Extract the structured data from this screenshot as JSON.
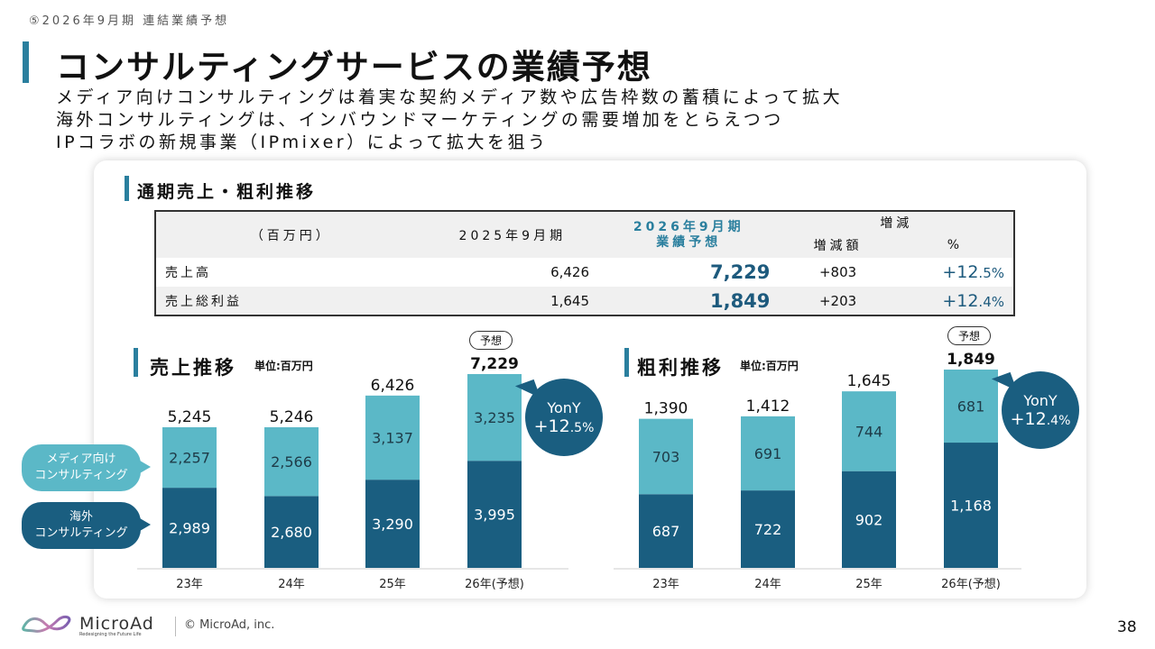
{
  "header": {
    "section_label": "⑤2026年9月期 連結業績予想",
    "title": "コンサルティングサービスの業績予想",
    "subtitle_lines": [
      "メディア向けコンサルティングは着実な契約メディア数や広告枠数の蓄積によって拡大",
      "海外コンサルティングは、インバウンドマーケティングの需要増加をとらえつつ",
      "IPコラボの新規事業（IPmixer）によって拡大を狙う"
    ]
  },
  "summary": {
    "heading": "通期売上・粗利推移",
    "headers": {
      "unit": "（百万円）",
      "prev": "2025年9月期",
      "forecast_line1": "2026年9月期",
      "forecast_line2": "業績予想",
      "diff": "増減",
      "diff_amount": "増減額",
      "diff_pct": "%"
    },
    "rows": [
      {
        "label": "売上高",
        "prev": "6,426",
        "forecast": "7,229",
        "diff": "+803",
        "pct_main": "+12",
        "pct_dec": ".5%"
      },
      {
        "label": "売上総利益",
        "prev": "1,645",
        "forecast": "1,849",
        "diff": "+203",
        "pct_main": "+12",
        "pct_dec": ".4%"
      }
    ]
  },
  "callouts": {
    "media": [
      "メディア向け",
      "コンサルティング"
    ],
    "overseas": [
      "海外",
      "コンサルティング"
    ]
  },
  "forecast_pill": "予想",
  "colors": {
    "accent": "#2a7f9e",
    "media": "#5bb8c7",
    "overseas": "#1a5e80",
    "forecast_text": "#1d5a7d"
  },
  "chart_data": [
    {
      "type": "bar",
      "stacked": true,
      "title": "売上推移",
      "unit": "単位:百万円",
      "categories": [
        "23年",
        "24年",
        "25年",
        "26年(予想)"
      ],
      "series": [
        {
          "name": "海外コンサルティング",
          "values": [
            2989,
            2680,
            3290,
            3995
          ],
          "labels": [
            "2,989",
            "2,680",
            "3,290",
            "3,995"
          ]
        },
        {
          "name": "メディア向けコンサルティング",
          "values": [
            2257,
            2566,
            3137,
            3235
          ],
          "labels": [
            "2,257",
            "2,566",
            "3,137",
            "3,235"
          ]
        }
      ],
      "totals": [
        "5,245",
        "5,246",
        "6,426",
        "7,229"
      ],
      "total_values": [
        5245,
        5246,
        6426,
        7229
      ],
      "yony": {
        "label": "YonY",
        "main": "+12",
        "dec": ".5%"
      },
      "ylim": [
        0,
        7229
      ]
    },
    {
      "type": "bar",
      "stacked": true,
      "title": "粗利推移",
      "unit": "単位:百万円",
      "categories": [
        "23年",
        "24年",
        "25年",
        "26年(予想)"
      ],
      "series": [
        {
          "name": "海外コンサルティング",
          "values": [
            687,
            722,
            902,
            1168
          ],
          "labels": [
            "687",
            "722",
            "902",
            "1,168"
          ]
        },
        {
          "name": "メディア向けコンサルティング",
          "values": [
            703,
            691,
            744,
            681
          ],
          "labels": [
            "703",
            "691",
            "744",
            "681"
          ]
        }
      ],
      "totals": [
        "1,390",
        "1,412",
        "1,645",
        "1,849"
      ],
      "total_values": [
        1390,
        1412,
        1645,
        1849
      ],
      "yony": {
        "label": "YonY",
        "main": "+12",
        "dec": ".4%"
      },
      "ylim": [
        0,
        1849
      ]
    }
  ],
  "footer": {
    "brand": "MicroAd",
    "tagline": "Redesigning the Future Life",
    "copyright": "© MicroAd, inc.",
    "page_number": "38"
  }
}
